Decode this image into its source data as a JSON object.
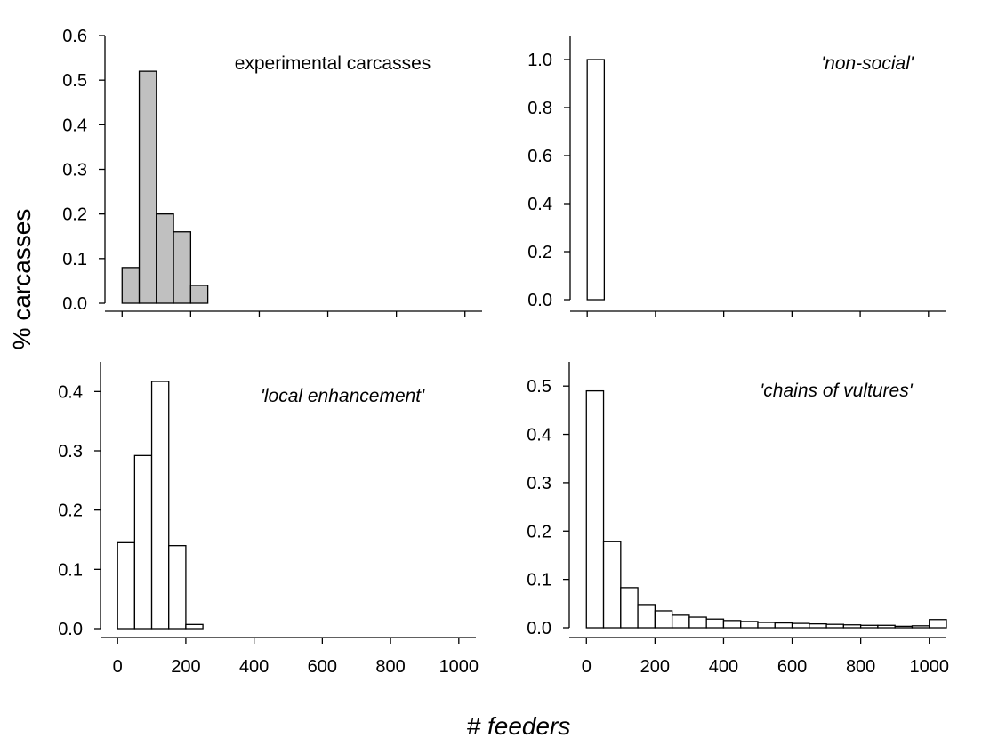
{
  "figure": {
    "ylabel": "% carcasses",
    "xlabel": "# feeders"
  },
  "chart_data": [
    {
      "type": "bar",
      "title": "experimental carcasses",
      "title_italic": false,
      "bar_color": "#c0c0c0",
      "bin_width": 50,
      "bins_start": [
        0,
        50,
        100,
        150,
        200
      ],
      "values": [
        0.08,
        0.52,
        0.2,
        0.16,
        0.04
      ],
      "xlim": [
        -50,
        1050
      ],
      "ylim": [
        0,
        0.6
      ],
      "yticks": [
        0.0,
        0.1,
        0.2,
        0.3,
        0.4,
        0.5,
        0.6
      ],
      "ytick_labels": [
        "0.0",
        "0.1",
        "0.2",
        "0.3",
        "0.4",
        "0.5",
        "0.6"
      ],
      "xticks": [
        0,
        200,
        400,
        600,
        800,
        1000
      ],
      "xtick_labels": []
    },
    {
      "type": "bar",
      "title": "'non-social'",
      "title_italic": true,
      "bar_color": "#ffffff",
      "bin_width": 50,
      "bins_start": [
        0,
        50
      ],
      "values": [
        1.0,
        0.0
      ],
      "xlim": [
        -50,
        1050
      ],
      "ylim": [
        0,
        1.1
      ],
      "yticks": [
        0.0,
        0.2,
        0.4,
        0.6,
        0.8,
        1.0
      ],
      "ytick_labels": [
        "0.0",
        "0.2",
        "0.4",
        "0.6",
        "0.8",
        "1.0"
      ],
      "xticks": [
        0,
        200,
        400,
        600,
        800,
        1000
      ],
      "xtick_labels": []
    },
    {
      "type": "bar",
      "title": "'local enhancement'",
      "title_italic": true,
      "bar_color": "#ffffff",
      "bin_width": 50,
      "bins_start": [
        0,
        50,
        100,
        150,
        200
      ],
      "values": [
        0.145,
        0.292,
        0.417,
        0.14,
        0.007
      ],
      "xlim": [
        -50,
        1050
      ],
      "ylim": [
        0,
        0.45
      ],
      "yticks": [
        0.0,
        0.1,
        0.2,
        0.3,
        0.4
      ],
      "ytick_labels": [
        "0.0",
        "0.1",
        "0.2",
        "0.3",
        "0.4"
      ],
      "xticks": [
        0,
        200,
        400,
        600,
        800,
        1000
      ],
      "xtick_labels": [
        "0",
        "200",
        "400",
        "600",
        "800",
        "1000"
      ]
    },
    {
      "type": "bar",
      "title": "'chains of vultures'",
      "title_italic": true,
      "bar_color": "#ffffff",
      "bin_width": 50,
      "bins_start": [
        0,
        50,
        100,
        150,
        200,
        250,
        300,
        350,
        400,
        450,
        500,
        550,
        600,
        650,
        700,
        750,
        800,
        850,
        900,
        950,
        1000
      ],
      "values": [
        0.49,
        0.178,
        0.083,
        0.048,
        0.035,
        0.026,
        0.022,
        0.018,
        0.015,
        0.013,
        0.011,
        0.01,
        0.009,
        0.008,
        0.007,
        0.006,
        0.005,
        0.005,
        0.003,
        0.004,
        0.017
      ],
      "xlim": [
        -50,
        1050
      ],
      "ylim": [
        0,
        0.55
      ],
      "yticks": [
        0.0,
        0.1,
        0.2,
        0.3,
        0.4,
        0.5
      ],
      "ytick_labels": [
        "0.0",
        "0.1",
        "0.2",
        "0.3",
        "0.4",
        "0.5"
      ],
      "xticks": [
        0,
        200,
        400,
        600,
        800,
        1000
      ],
      "xtick_labels": [
        "0",
        "200",
        "400",
        "600",
        "800",
        "1000"
      ]
    }
  ]
}
